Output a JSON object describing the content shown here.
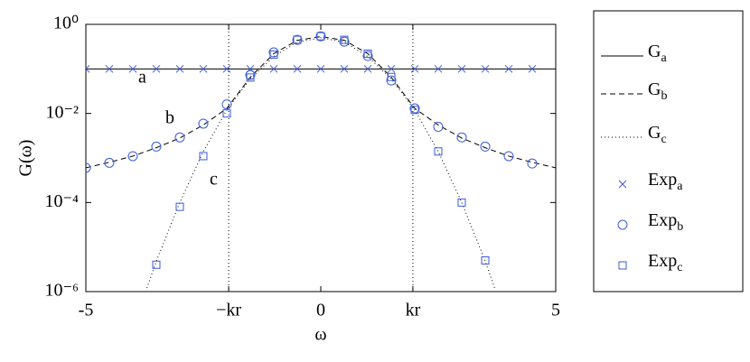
{
  "chart_data": {
    "type": "line",
    "xlabel": "ω",
    "ylabel": "G(ω)",
    "xlim": [
      -5,
      5
    ],
    "xticks": [
      -5,
      {
        "value": -1.96,
        "label": "−kr"
      },
      0,
      {
        "value": 1.96,
        "label": "kr"
      },
      5
    ],
    "vlines": [
      -1.96,
      1.96
    ],
    "ylim": [
      1e-06,
      1
    ],
    "log_y": true,
    "yticks": [
      {
        "value": 1,
        "label": "10⁰"
      },
      {
        "value": 0.01,
        "label": "10⁻²"
      },
      {
        "value": 0.0001,
        "label": "10⁻⁴"
      },
      {
        "value": 1e-06,
        "label": "10⁻⁶"
      }
    ],
    "annotations": [
      "a",
      "b",
      "c"
    ],
    "legend": "outside-right",
    "series": [
      {
        "name": "Ga",
        "color": "#000000",
        "style": "solid",
        "x": [
          -5,
          5
        ],
        "values": [
          0.1,
          0.1
        ]
      },
      {
        "name": "Gb",
        "color": "#000000",
        "style": "dashed",
        "x": [
          -5,
          -4.5,
          -4,
          -3.5,
          -3,
          -2.5,
          -2,
          -1.5,
          -1,
          -0.5,
          0,
          0.5,
          1,
          1.5,
          2,
          2.5,
          3,
          3.5,
          4,
          4.5,
          5
        ],
        "values": [
          0.0006,
          0.0008,
          0.0011,
          0.0017,
          0.0028,
          0.0055,
          0.013,
          0.065,
          0.22,
          0.44,
          0.53,
          0.44,
          0.22,
          0.065,
          0.013,
          0.0055,
          0.0028,
          0.0017,
          0.0011,
          0.0008,
          0.0006
        ]
      },
      {
        "name": "Gc",
        "color": "#000000",
        "style": "dotted",
        "x": [
          -3.7,
          -3.5,
          -3,
          -2.5,
          -2,
          -1.5,
          -1,
          -0.5,
          0,
          0.5,
          1,
          1.5,
          2,
          2.5,
          3,
          3.5,
          3.7
        ],
        "values": [
          1.2e-06,
          4.8e-06,
          0.0001,
          0.0014,
          0.012,
          0.06,
          0.19,
          0.4,
          0.5,
          0.4,
          0.19,
          0.06,
          0.012,
          0.0014,
          0.0001,
          4.8e-06,
          1.2e-06
        ]
      },
      {
        "name": "Expa",
        "color": "#3a5bd9",
        "style": "x",
        "x": [
          -5,
          -4.5,
          -4,
          -3.5,
          -3,
          -2.5,
          -2,
          -1.5,
          -1,
          -0.5,
          0,
          0.5,
          1,
          1.5,
          2,
          2.5,
          3,
          3.5,
          4,
          4.5
        ],
        "values": [
          0.1,
          0.1,
          0.1,
          0.1,
          0.1,
          0.1,
          0.1,
          0.1,
          0.1,
          0.1,
          0.1,
          0.1,
          0.1,
          0.1,
          0.1,
          0.1,
          0.1,
          0.1,
          0.1,
          0.1
        ]
      },
      {
        "name": "Expb",
        "color": "#3a5bd9",
        "style": "o",
        "x": [
          -5,
          -4.5,
          -4,
          -3.5,
          -3,
          -2.5,
          -2,
          -1.5,
          -1,
          -0.5,
          0,
          0.5,
          1,
          1.5,
          2,
          2.5,
          3,
          3.5,
          4,
          4.5
        ],
        "values": [
          0.0006,
          0.00078,
          0.0011,
          0.0018,
          0.0029,
          0.0059,
          0.016,
          0.073,
          0.235,
          0.45,
          0.54,
          0.41,
          0.195,
          0.055,
          0.013,
          0.005,
          0.0029,
          0.0018,
          0.0011,
          0.00075
        ]
      },
      {
        "name": "Expc",
        "color": "#3a5bd9",
        "style": "s",
        "x": [
          -3.5,
          -3,
          -2.5,
          -2,
          -1.5,
          -1,
          -0.5,
          0,
          0.5,
          1,
          1.5,
          2,
          2.5,
          3,
          3.5
        ],
        "values": [
          4e-06,
          8e-05,
          0.0011,
          0.01,
          0.064,
          0.21,
          0.45,
          0.54,
          0.45,
          0.22,
          0.066,
          0.012,
          0.0014,
          0.0001,
          5e-06
        ]
      }
    ]
  }
}
